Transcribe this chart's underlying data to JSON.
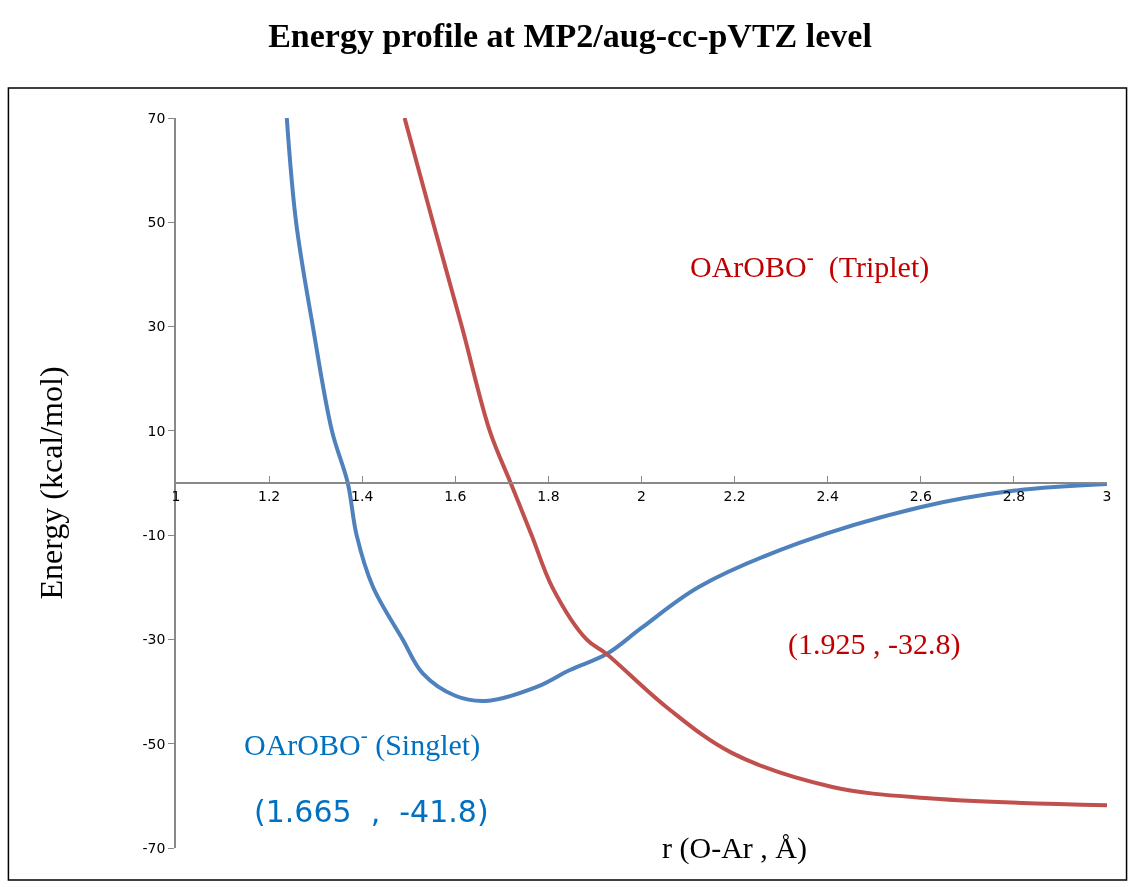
{
  "chart_data": {
    "type": "line",
    "title": "Energy profile at MP2/aug-cc-pVTZ level",
    "xlabel": "r (O-Ar , Å)",
    "ylabel": "Energy (kcal/mol)",
    "series": [
      {
        "color": "#4f81bd",
        "x": [
          1.238,
          1.258,
          1.294,
          1.335,
          1.369,
          1.388,
          1.423,
          1.487,
          1.53,
          1.6,
          1.665,
          1.775,
          1.845,
          1.925,
          2.0,
          2.124,
          2.339,
          2.601,
          2.798,
          3.0
        ],
        "values": [
          70,
          50,
          30,
          10,
          0,
          -10,
          -19.9,
          -30,
          -36.5,
          -40.8,
          -41.8,
          -39.1,
          -35.9,
          -32.8,
          -27.8,
          -19.9,
          -11.5,
          -4.6,
          -1.5,
          -0.2
        ]
      },
      {
        "color": "#c0504d",
        "x": [
          1.491,
          1.552,
          1.614,
          1.674,
          1.719,
          1.764,
          1.809,
          1.882,
          1.925,
          2.054,
          2.195,
          2.41,
          2.624,
          3.0
        ],
        "values": [
          70,
          50,
          30,
          10,
          0,
          -10,
          -20.1,
          -30,
          -32.8,
          -43.0,
          -51.8,
          -58.3,
          -60.5,
          -61.8
        ]
      }
    ],
    "annotations": [
      "OArOBO$^{-}$  (Triplet)",
      "(1.925 , -32.8)",
      "OArOBO$^{-}$ (Singlet)",
      "(1.665  ,  -41.8)"
    ],
    "xlim": [
      1,
      3
    ],
    "xticks": [
      1,
      1.2,
      1.4,
      1.6,
      1.8,
      2,
      2.2,
      2.4,
      2.6,
      2.8,
      3
    ],
    "ylim": [
      -70,
      70
    ],
    "yticks": [
      -70,
      -50,
      -30,
      -10,
      10,
      30,
      50,
      70
    ],
    "marker": "none",
    "line_style": "solid"
  }
}
